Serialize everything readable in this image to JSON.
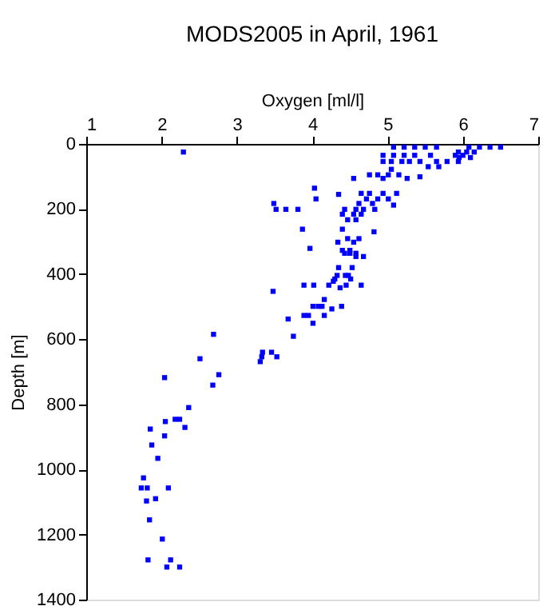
{
  "chart_data": {
    "type": "scatter",
    "title": "MODS2005 in April, 1961",
    "xlabel": "Oxygen [ml/l]",
    "ylabel": "Depth [m]",
    "xlim": [
      1,
      7
    ],
    "xticks": [
      1,
      2,
      3,
      4,
      5,
      6,
      7
    ],
    "ylim": [
      1400,
      0
    ],
    "yticks": [
      0,
      200,
      400,
      600,
      800,
      1000,
      1200,
      1400
    ],
    "grid": false,
    "marker": "square",
    "series": [
      {
        "color": "#0000ff",
        "x": [
          2.29,
          5.08,
          5.22,
          5.36,
          5.5,
          5.65,
          6.08,
          6.22,
          6.36,
          6.5,
          5.94,
          6.05,
          6.15,
          4.94,
          5.08,
          5.22,
          5.36,
          5.57,
          5.9,
          6.0,
          5.95,
          6.1,
          4.94,
          5.05,
          5.19,
          5.29,
          5.43,
          5.65,
          5.79,
          5.94,
          5.54,
          5.68,
          5.05,
          5.43,
          4.76,
          4.87,
          5.01,
          5.15,
          4.55,
          4.94,
          5.26,
          4.03,
          4.65,
          4.76,
          4.94,
          5.12,
          4.35,
          4.05,
          4.72,
          4.87,
          5.01,
          3.49,
          4.62,
          4.8,
          5.08,
          3.52,
          3.65,
          3.81,
          4.43,
          4.58,
          4.68,
          4.83,
          4.4,
          4.55,
          4.65,
          4.47,
          4.58,
          3.87,
          4.4,
          4.82,
          4.47,
          4.62,
          4.34,
          4.55,
          3.97,
          4.4,
          4.5,
          4.43,
          4.5,
          4.58,
          4.35,
          4.58,
          4.68,
          4.53,
          4.33,
          4.44,
          4.48,
          4.3,
          4.51,
          4.28,
          3.89,
          4.02,
          4.22,
          4.45,
          4.65,
          4.37,
          3.48,
          4.16,
          4.01,
          4.08,
          4.13,
          4.39,
          4.26,
          3.89,
          3.95,
          4.16,
          3.68,
          4.01,
          2.69,
          3.75,
          3.34,
          3.46,
          3.33,
          3.53,
          2.51,
          3.31,
          2.76,
          2.04,
          2.68,
          2.36,
          2.18,
          2.24,
          2.05,
          2.31,
          1.85,
          2.04,
          1.87,
          1.95,
          1.76,
          1.73,
          1.81,
          2.09,
          1.92,
          1.8,
          1.84,
          2.01,
          1.82,
          2.12,
          2.07,
          2.24
        ],
        "values": [
          25,
          10,
          10,
          10,
          10,
          10,
          10,
          10,
          10,
          10,
          25,
          25,
          25,
          35,
          35,
          35,
          35,
          35,
          35,
          35,
          42,
          42,
          54,
          54,
          54,
          54,
          54,
          54,
          54,
          54,
          70,
          70,
          78,
          101,
          95,
          95,
          95,
          95,
          106,
          106,
          106,
          136,
          152,
          152,
          152,
          152,
          155,
          169,
          169,
          169,
          169,
          183,
          183,
          183,
          188,
          201,
          201,
          201,
          201,
          201,
          201,
          201,
          216,
          216,
          216,
          233,
          233,
          262,
          262,
          270,
          291,
          291,
          302,
          302,
          321,
          327,
          327,
          336,
          336,
          336,
          380,
          346,
          346,
          380,
          404,
          404,
          404,
          415,
          415,
          422,
          434,
          434,
          434,
          434,
          434,
          442,
          453,
          478,
          499,
          499,
          499,
          499,
          507,
          527,
          527,
          527,
          538,
          551,
          585,
          591,
          640,
          640,
          654,
          654,
          660,
          669,
          709,
          718,
          741,
          810,
          846,
          846,
          853,
          871,
          876,
          897,
          925,
          966,
          1026,
          1057,
          1057,
          1057,
          1090,
          1097,
          1155,
          1214,
          1278,
          1278,
          1300,
          1300
        ]
      }
    ]
  }
}
